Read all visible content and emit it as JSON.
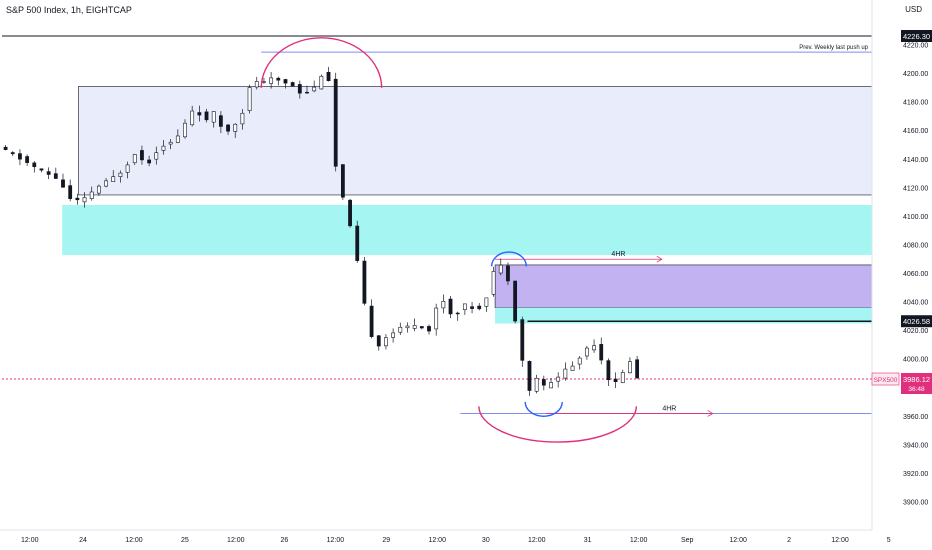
{
  "header": {
    "symbol_title": "S&P 500 Index, 1h, EIGHTCAP",
    "currency": "USD"
  },
  "colors": {
    "candle": "#131722",
    "zone_blue": "#e9ecfb",
    "zone_cyan": "#a5f5f2",
    "zone_purple": "#c3b2f2",
    "arc_pink": "#e0307d",
    "arc_blue": "#2962ff",
    "level_blue": "#7b8ff0",
    "price_red": "#e0307d"
  },
  "chart_data": {
    "type": "candlestick",
    "instrument": "S&P 500 Index",
    "timeframe": "1h",
    "price_range": [
      3900,
      4230
    ],
    "y_ticks": [
      3900,
      3920,
      3940,
      3960,
      3980,
      4000,
      4020,
      4040,
      4060,
      4080,
      4100,
      4120,
      4140,
      4160,
      4180,
      4200,
      4220
    ],
    "x_ticks": [
      {
        "label": "12:00",
        "slot": 1.2
      },
      {
        "label": "24",
        "slot": 3.5
      },
      {
        "label": "12:00",
        "slot": 5.7
      },
      {
        "label": "25",
        "slot": 7.9
      },
      {
        "label": "12:00",
        "slot": 10.1
      },
      {
        "label": "26",
        "slot": 12.2
      },
      {
        "label": "12:00",
        "slot": 14.4
      },
      {
        "label": "29",
        "slot": 16.6
      },
      {
        "label": "12:00",
        "slot": 18.8
      },
      {
        "label": "30",
        "slot": 20.9
      },
      {
        "label": "12:00",
        "slot": 23.1
      },
      {
        "label": "31",
        "slot": 25.3
      },
      {
        "label": "12:00",
        "slot": 27.5
      },
      {
        "label": "Sep",
        "slot": 29.6
      },
      {
        "label": "12:00",
        "slot": 31.8
      },
      {
        "label": "2",
        "slot": 34.0
      },
      {
        "label": "12:00",
        "slot": 36.2
      },
      {
        "label": "5",
        "slot": 38.3
      }
    ],
    "anchors": [
      {
        "slot": 0.0,
        "price": 4148
      },
      {
        "slot": 1.0,
        "price": 4140
      },
      {
        "slot": 1.8,
        "price": 4132
      },
      {
        "slot": 2.6,
        "price": 4126
      },
      {
        "slot": 3.1,
        "price": 4112
      },
      {
        "slot": 3.6,
        "price": 4110
      },
      {
        "slot": 4.2,
        "price": 4120
      },
      {
        "slot": 4.8,
        "price": 4125
      },
      {
        "slot": 5.4,
        "price": 4133
      },
      {
        "slot": 5.9,
        "price": 4145
      },
      {
        "slot": 6.4,
        "price": 4136
      },
      {
        "slot": 7.0,
        "price": 4150
      },
      {
        "slot": 7.6,
        "price": 4152
      },
      {
        "slot": 8.0,
        "price": 4163
      },
      {
        "slot": 8.5,
        "price": 4178
      },
      {
        "slot": 8.9,
        "price": 4165
      },
      {
        "slot": 9.3,
        "price": 4172
      },
      {
        "slot": 9.8,
        "price": 4158
      },
      {
        "slot": 10.2,
        "price": 4165
      },
      {
        "slot": 10.6,
        "price": 4175
      },
      {
        "slot": 11.0,
        "price": 4198
      },
      {
        "slot": 11.3,
        "price": 4192
      },
      {
        "slot": 11.8,
        "price": 4196
      },
      {
        "slot": 12.2,
        "price": 4195
      },
      {
        "slot": 12.7,
        "price": 4192
      },
      {
        "slot": 13.1,
        "price": 4186
      },
      {
        "slot": 13.6,
        "price": 4189
      },
      {
        "slot": 14.0,
        "price": 4201
      },
      {
        "slot": 14.3,
        "price": 4195
      },
      {
        "slot": 14.5,
        "price": 4140
      },
      {
        "slot": 14.8,
        "price": 4118
      },
      {
        "slot": 15.1,
        "price": 4098
      },
      {
        "slot": 15.4,
        "price": 4078
      },
      {
        "slot": 15.7,
        "price": 4048
      },
      {
        "slot": 16.0,
        "price": 4020
      },
      {
        "slot": 16.4,
        "price": 4010
      },
      {
        "slot": 16.9,
        "price": 4018
      },
      {
        "slot": 17.5,
        "price": 4022
      },
      {
        "slot": 18.1,
        "price": 4025
      },
      {
        "slot": 18.6,
        "price": 4020
      },
      {
        "slot": 19.1,
        "price": 4045
      },
      {
        "slot": 19.6,
        "price": 4030
      },
      {
        "slot": 20.2,
        "price": 4038
      },
      {
        "slot": 20.7,
        "price": 4035
      },
      {
        "slot": 21.0,
        "price": 4040
      },
      {
        "slot": 21.4,
        "price": 4062
      },
      {
        "slot": 21.8,
        "price": 4066
      },
      {
        "slot": 22.1,
        "price": 4052
      },
      {
        "slot": 22.3,
        "price": 4030
      },
      {
        "slot": 22.6,
        "price": 4002
      },
      {
        "slot": 22.9,
        "price": 3976
      },
      {
        "slot": 23.2,
        "price": 3988
      },
      {
        "slot": 23.6,
        "price": 3980
      },
      {
        "slot": 24.0,
        "price": 3985
      },
      {
        "slot": 24.4,
        "price": 3992
      },
      {
        "slot": 24.9,
        "price": 3996
      },
      {
        "slot": 25.3,
        "price": 4006
      },
      {
        "slot": 25.7,
        "price": 4012
      },
      {
        "slot": 26.1,
        "price": 3998
      },
      {
        "slot": 26.5,
        "price": 3980
      },
      {
        "slot": 26.9,
        "price": 3988
      },
      {
        "slot": 27.3,
        "price": 4000
      },
      {
        "slot": 27.6,
        "price": 3986
      }
    ],
    "zones": [
      {
        "name": "upper-supply-zone",
        "slot_start": 3.3,
        "slot_end": 40.0,
        "top": 4191,
        "bottom": 4115,
        "color": "#e9ecfb",
        "border": true
      },
      {
        "name": "cyan-demand-zone-left",
        "slot_start": 2.6,
        "slot_end": 40.0,
        "top": 4108,
        "bottom": 4073,
        "color": "#a5f5f2",
        "border": false
      },
      {
        "name": "purple-supply-zone",
        "slot_start": 21.3,
        "slot_end": 40.0,
        "top": 4066,
        "bottom": 4036,
        "color": "#c3b2f2",
        "border": true
      },
      {
        "name": "cyan-zone-right",
        "slot_start": 21.3,
        "slot_end": 40.0,
        "top": 4036,
        "bottom": 4025,
        "color": "#a5f5f2",
        "border": false
      }
    ],
    "levels": [
      {
        "name": "top-black-level",
        "price": 4226.3,
        "slot_start": 0.0,
        "slot_end": 40.0,
        "color": "#131722",
        "width": 1
      },
      {
        "name": "weekly-push-level",
        "price": 4215,
        "slot_start": 11.2,
        "slot_end": 40.0,
        "color": "#7b8ff0",
        "width": 1,
        "label": "Prev. Weekly last push up"
      },
      {
        "name": "resistance-4026-level",
        "price": 4026.58,
        "slot_start": 22.7,
        "slot_end": 40.0,
        "color": "#131722",
        "width": 1.5
      },
      {
        "name": "low-4hr-level",
        "price": 3962,
        "slot_start": 19.8,
        "slot_end": 40.0,
        "color": "#7b8ff0",
        "width": 1
      },
      {
        "name": "current-price-line",
        "price": 3986.12,
        "slot_start": 0.0,
        "slot_end": 40.0,
        "color": "#e0307d",
        "width": 1,
        "dashed": true
      }
    ],
    "arrows": [
      {
        "name": "4hr-upper-arrow",
        "label": "4HR",
        "price": 4070,
        "slot_start": 21.3,
        "slot_end": 28.5
      },
      {
        "name": "4hr-lower-arrow",
        "label": "4HR",
        "price": 3962,
        "slot_start": 23.5,
        "slot_end": 30.7
      }
    ],
    "arcs": [
      {
        "name": "top-pink-arc",
        "color": "#e0307d",
        "center_slot": 13.8,
        "center_price": 4190,
        "rx_slots": 2.6,
        "ry_price": 35,
        "direction": "up"
      },
      {
        "name": "mid-blue-arc",
        "color": "#2962ff",
        "center_slot": 21.9,
        "center_price": 4065,
        "rx_slots": 0.75,
        "ry_price": 10,
        "direction": "up"
      },
      {
        "name": "bottom-blue-arc",
        "color": "#2962ff",
        "center_slot": 23.4,
        "center_price": 3970,
        "rx_slots": 0.8,
        "ry_price": 10,
        "direction": "down"
      },
      {
        "name": "bottom-pink-arc",
        "color": "#e0307d",
        "center_slot": 24.0,
        "center_price": 3967,
        "rx_slots": 3.4,
        "ry_price": 25,
        "direction": "down"
      }
    ],
    "price_labels": [
      {
        "name": "price-label-4226",
        "text": "4226.30",
        "price": 4226.3,
        "style": "black"
      },
      {
        "name": "price-label-4026",
        "text": "4026.58",
        "price": 4026.58,
        "style": "black"
      },
      {
        "name": "price-label-current",
        "text": "3986.12",
        "price": 3986.12,
        "style": "red",
        "sub": "36:48",
        "tag": "SPX500"
      }
    ],
    "current_price": 3986.12,
    "countdown": "36:48",
    "current_symbol_tag": "SPX500"
  }
}
